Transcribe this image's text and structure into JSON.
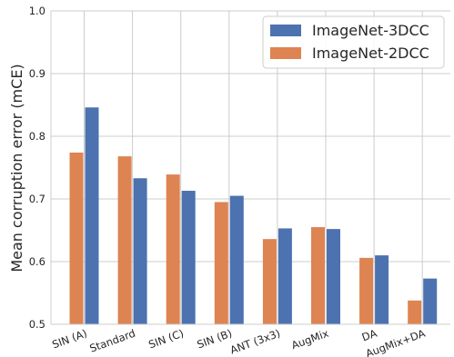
{
  "chart_data": {
    "type": "bar",
    "title": "",
    "xlabel": "",
    "ylabel": "Mean corruption error (mCE)",
    "ylim": [
      0.5,
      1.0
    ],
    "yticks": [
      "0.5",
      "0.6",
      "0.7",
      "0.8",
      "0.9",
      "1.0"
    ],
    "grid": true,
    "legend_position": "top-right",
    "categories": [
      "SIN (A)",
      "Standard",
      "SIN (C)",
      "SIN (B)",
      "ANT (3x3)",
      "AugMix",
      "DA",
      "AugMix+DA"
    ],
    "series": [
      {
        "name": "ImageNet-2DCC",
        "color": "#dd8452",
        "values": [
          0.774,
          0.768,
          0.739,
          0.695,
          0.636,
          0.655,
          0.606,
          0.538
        ]
      },
      {
        "name": "ImageNet-3DCC",
        "color": "#4c72b0",
        "values": [
          0.846,
          0.733,
          0.713,
          0.705,
          0.653,
          0.652,
          0.61,
          0.573
        ]
      }
    ],
    "legend_order": [
      "ImageNet-3DCC",
      "ImageNet-2DCC"
    ]
  }
}
